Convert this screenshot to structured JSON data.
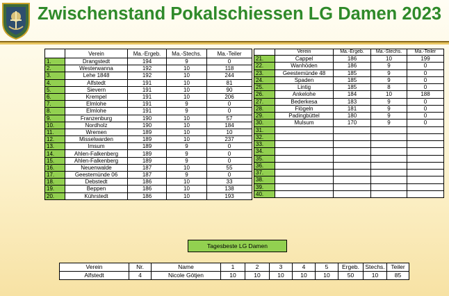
{
  "title": "Zwischenstand Pokalschiessen LG Damen 2023",
  "colors": {
    "title": "#2f8a2a",
    "rank_cell": "#92d050",
    "badge": "#92d050"
  },
  "logo": {
    "name": "club-crest"
  },
  "left_table": {
    "headers": [
      "",
      "Verein",
      "Ma.-Ergeb.",
      "Ma.-Stechs.",
      "Ma.-Teiler"
    ],
    "rows": [
      [
        "1.",
        "Drangstedt",
        "194",
        "9",
        "0"
      ],
      [
        "2.",
        "Westerwanna",
        "192",
        "10",
        "118"
      ],
      [
        "3.",
        "Lehe 1848",
        "192",
        "10",
        "244"
      ],
      [
        "4.",
        "Alfstedt",
        "191",
        "10",
        "81"
      ],
      [
        "5.",
        "Sievern",
        "191",
        "10",
        "90"
      ],
      [
        "6.",
        "Krempel",
        "191",
        "10",
        "206"
      ],
      [
        "7.",
        "Elmlohe",
        "191",
        "9",
        "0"
      ],
      [
        "8.",
        "Elmlohe",
        "191",
        "9",
        "0"
      ],
      [
        "9.",
        "Franzenburg",
        "190",
        "10",
        "57"
      ],
      [
        "10.",
        "Nordholz",
        "190",
        "10",
        "184"
      ],
      [
        "11.",
        "Wremen",
        "189",
        "10",
        "10"
      ],
      [
        "12.",
        "Misselwarden",
        "189",
        "10",
        "237"
      ],
      [
        "13.",
        "Imsum",
        "189",
        "9",
        "0"
      ],
      [
        "14.",
        "Ahlen-Falkenberg",
        "189",
        "9",
        "0"
      ],
      [
        "15.",
        "Ahlen-Falkenberg",
        "189",
        "9",
        "0"
      ],
      [
        "16.",
        "Neuenwalde",
        "187",
        "10",
        "55"
      ],
      [
        "17.",
        "Geestemünde 06",
        "187",
        "9",
        "0"
      ],
      [
        "18.",
        "Debstedt",
        "186",
        "10",
        "33"
      ],
      [
        "19.",
        "Beppen",
        "186",
        "10",
        "138"
      ],
      [
        "20.",
        "Kührstedt",
        "186",
        "10",
        "193"
      ]
    ]
  },
  "right_table": {
    "headers": [
      "",
      "Verein",
      "Ma.-Ergeb.",
      "Ma.-Stechs.",
      "Ma.-Teiler"
    ],
    "rows": [
      [
        "21.",
        "Cappel",
        "186",
        "10",
        "199"
      ],
      [
        "22.",
        "Wanhöden",
        "186",
        "9",
        "0"
      ],
      [
        "23.",
        "Geestemünde 48",
        "185",
        "9",
        "0"
      ],
      [
        "24.",
        "Spaden",
        "185",
        "9",
        "0"
      ],
      [
        "25.",
        "Lintig",
        "185",
        "8",
        "0"
      ],
      [
        "26.",
        "Ankelohe",
        "184",
        "10",
        "188"
      ],
      [
        "27.",
        "Bederkesa",
        "183",
        "9",
        "0"
      ],
      [
        "28.",
        "Flögeln",
        "181",
        "9",
        "0"
      ],
      [
        "29.",
        "Padingbüttel",
        "180",
        "9",
        "0"
      ],
      [
        "30.",
        "Mulsum",
        "170",
        "9",
        "0"
      ],
      [
        "31.",
        "",
        "",
        "",
        ""
      ],
      [
        "32.",
        "",
        "",
        "",
        ""
      ],
      [
        "33.",
        "",
        "",
        "",
        ""
      ],
      [
        "34.",
        "",
        "",
        "",
        ""
      ],
      [
        "35.",
        "",
        "",
        "",
        ""
      ],
      [
        "36.",
        "",
        "",
        "",
        ""
      ],
      [
        "37.",
        "",
        "",
        "",
        ""
      ],
      [
        "38.",
        "",
        "",
        "",
        ""
      ],
      [
        "39.",
        "",
        "",
        "",
        ""
      ],
      [
        "40.",
        "",
        "",
        "",
        ""
      ]
    ]
  },
  "tagesbeste": {
    "label": "Tagesbeste  LG Damen"
  },
  "bottom_table": {
    "headers": [
      "Verein",
      "Nr.",
      "Name",
      "1",
      "2",
      "3",
      "4",
      "5",
      "Ergeb.",
      "Stechs.",
      "Teiler"
    ],
    "row": [
      "Alfstedt",
      "4",
      "Nicole Götjen",
      "10",
      "10",
      "10",
      "10",
      "10",
      "50",
      "10",
      "85"
    ]
  }
}
